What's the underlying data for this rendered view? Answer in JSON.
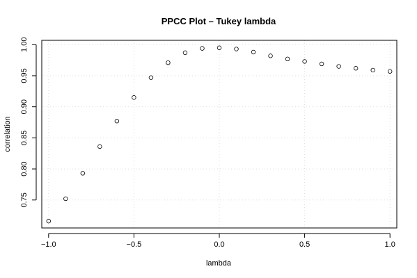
{
  "chart_data": {
    "type": "scatter",
    "title": "PPCC Plot – Tukey lambda",
    "xlabel": "lambda",
    "ylabel": "correlation",
    "xlim": [
      -1.04,
      1.04
    ],
    "ylim": [
      0.705,
      1.007
    ],
    "x_ticks": [
      -1.0,
      -0.5,
      0.0,
      0.5,
      1.0
    ],
    "x_tick_labels": [
      "−1.0",
      "−0.5",
      "0.0",
      "0.5",
      "1.0"
    ],
    "y_ticks": [
      0.75,
      0.8,
      0.85,
      0.9,
      0.95,
      1.0
    ],
    "y_tick_labels": [
      "0.75",
      "0.80",
      "0.85",
      "0.90",
      "0.95",
      "1.00"
    ],
    "grid": true,
    "marker": "open-circle",
    "series": [
      {
        "x": [
          -1.0,
          -0.9,
          -0.8,
          -0.7,
          -0.6,
          -0.5,
          -0.4,
          -0.3,
          -0.2,
          -0.1,
          0.0,
          0.1,
          0.2,
          0.3,
          0.4,
          0.5,
          0.6,
          0.7,
          0.8,
          0.9,
          1.0
        ],
        "y": [
          0.716,
          0.752,
          0.793,
          0.836,
          0.877,
          0.915,
          0.947,
          0.971,
          0.987,
          0.994,
          0.995,
          0.993,
          0.988,
          0.982,
          0.977,
          0.973,
          0.969,
          0.965,
          0.962,
          0.959,
          0.957
        ]
      }
    ]
  }
}
